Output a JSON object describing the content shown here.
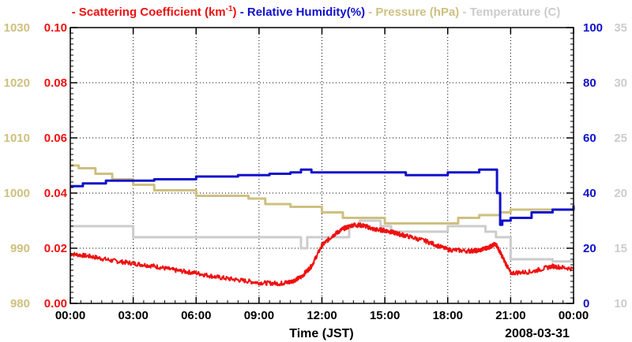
{
  "chart_data": {
    "type": "line",
    "title": "",
    "legend": {
      "placement": "top",
      "entries": [
        {
          "id": "scat",
          "prefix": "- ",
          "label": "Scattering Coefficient (km",
          "sup": "-1",
          "suffix": ")",
          "color": "#ee1111"
        },
        {
          "id": "rh",
          "prefix": "- ",
          "label": "Relative Humidity(%)",
          "sup": "",
          "suffix": "",
          "color": "#1111cc"
        },
        {
          "id": "pres",
          "prefix": "- ",
          "label": "Pressure (hPa)",
          "sup": "",
          "suffix": "",
          "color": "#cec080"
        },
        {
          "id": "temp",
          "prefix": "- ",
          "label": "Temperature (C)",
          "sup": "",
          "suffix": "",
          "color": "#cccccc"
        }
      ]
    },
    "xlabel": "Time (JST)",
    "date_label": "2008-03-31",
    "xlim": [
      0,
      24
    ],
    "x_ticks": [
      {
        "v": 0,
        "label": "00:00"
      },
      {
        "v": 3,
        "label": "03:00"
      },
      {
        "v": 6,
        "label": "06:00"
      },
      {
        "v": 9,
        "label": "09:00"
      },
      {
        "v": 12,
        "label": "12:00"
      },
      {
        "v": 15,
        "label": "15:00"
      },
      {
        "v": 18,
        "label": "18:00"
      },
      {
        "v": 21,
        "label": "21:00"
      },
      {
        "v": 24,
        "label": "00:00"
      }
    ],
    "grid": true,
    "axes": {
      "pressure": {
        "label": "Pressure (hPa)",
        "lim": [
          980,
          1030
        ],
        "ticks": [
          "980",
          "990",
          "1000",
          "1010",
          "1020",
          "1030"
        ],
        "color": "#cec080",
        "side": "left-outer"
      },
      "scattering": {
        "label": "Scattering Coefficient (km-1)",
        "lim": [
          0,
          0.1
        ],
        "ticks": [
          "0.00",
          "0.02",
          "0.04",
          "0.06",
          "0.08",
          "0.10"
        ],
        "color": "#ee1111",
        "side": "left-inner"
      },
      "humidity": {
        "label": "Relative Humidity(%)",
        "lim": [
          0,
          100
        ],
        "ticks": [
          "0",
          "20",
          "40",
          "60",
          "80",
          "100"
        ],
        "color": "#1111cc",
        "side": "right-inner"
      },
      "temperature": {
        "label": "Temperature (C)",
        "lim": [
          10,
          35
        ],
        "ticks": [
          "10",
          "15",
          "20",
          "25",
          "30",
          "35"
        ],
        "color": "#cccccc",
        "side": "right-outer"
      }
    },
    "series": [
      {
        "name": "Temperature (C)",
        "axis": "temperature",
        "color": "#cccccc",
        "step": true,
        "x": [
          0,
          3,
          10.5,
          11,
          11.3,
          13.3,
          13.8,
          14.8,
          15.3,
          18,
          19.8,
          20.3,
          21,
          23,
          24
        ],
        "y": [
          17,
          16,
          16,
          15,
          16,
          17,
          17.5,
          17,
          16.5,
          17,
          16.5,
          16,
          14,
          13.8,
          13.8
        ]
      },
      {
        "name": "Pressure (hPa)",
        "axis": "pressure",
        "color": "#cec080",
        "step": true,
        "x": [
          0,
          0.4,
          1.2,
          2,
          3,
          4,
          6,
          8.5,
          9.3,
          10.5,
          12,
          13,
          15,
          17.5,
          18.5,
          19.5,
          20.5,
          21,
          24
        ],
        "y": [
          1005,
          1004.5,
          1003.5,
          1002.5,
          1001.5,
          1000.5,
          999.5,
          999,
          998,
          997.5,
          996.5,
          995.5,
          994.5,
          994.5,
          995.5,
          996,
          996.5,
          997,
          997
        ]
      },
      {
        "name": "Relative Humidity(%)",
        "axis": "humidity",
        "color": "#1111cc",
        "step": true,
        "x": [
          0,
          0.6,
          1.7,
          4,
          6,
          8,
          9.5,
          10.5,
          11,
          11.5,
          12,
          14,
          16,
          18,
          19.5,
          20.3,
          20.35,
          20.5,
          20.6,
          21,
          22,
          23,
          24
        ],
        "y": [
          42.5,
          43.5,
          44.5,
          45,
          46,
          46.5,
          47,
          47.5,
          48.5,
          47.5,
          47.5,
          47.5,
          46.5,
          47.5,
          48.5,
          48.5,
          40,
          28.5,
          30,
          31,
          33,
          34,
          35.5
        ]
      },
      {
        "name": "Scattering Coefficient (km-1)",
        "axis": "scattering",
        "color": "#ee1111",
        "step": false,
        "x": [
          0,
          1,
          2,
          3,
          4,
          5,
          6,
          7,
          8,
          9,
          10,
          10.5,
          11,
          11.5,
          12,
          12.5,
          13,
          13.5,
          14,
          14.5,
          15,
          15.5,
          16,
          17,
          18,
          19,
          19.5,
          20,
          20.3,
          20.6,
          21,
          22,
          23,
          24
        ],
        "y": [
          0.018,
          0.017,
          0.0155,
          0.0145,
          0.0135,
          0.012,
          0.011,
          0.0095,
          0.0085,
          0.0075,
          0.0072,
          0.0078,
          0.0095,
          0.0135,
          0.021,
          0.0245,
          0.027,
          0.0285,
          0.0282,
          0.0268,
          0.0265,
          0.0255,
          0.0245,
          0.0225,
          0.0195,
          0.019,
          0.0192,
          0.0205,
          0.0215,
          0.017,
          0.011,
          0.0115,
          0.0135,
          0.0125
        ]
      }
    ]
  }
}
